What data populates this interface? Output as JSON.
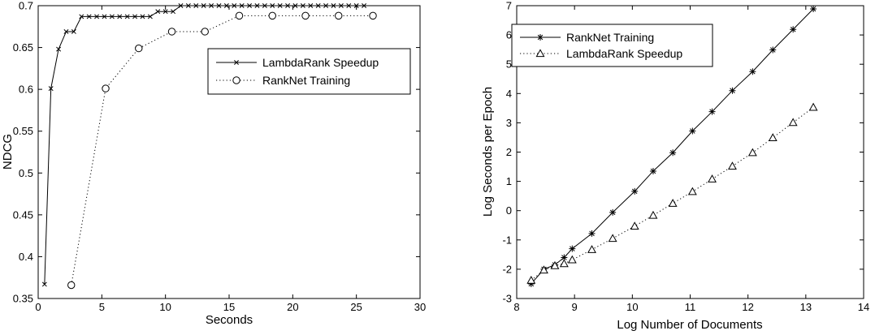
{
  "chart_data": [
    {
      "type": "line",
      "xlabel": "Seconds",
      "ylabel": "NDCG",
      "xlim": [
        0,
        30
      ],
      "ylim": [
        0.35,
        0.7
      ],
      "xticks": [
        0,
        5,
        10,
        15,
        20,
        25,
        30
      ],
      "yticks": [
        0.35,
        0.4,
        0.45,
        0.5,
        0.55,
        0.6,
        0.65,
        0.7
      ],
      "ytick_labels": [
        "0.35",
        "0.4",
        "0.45",
        "0.5",
        "0.55",
        "0.6",
        "0.65",
        "0.7"
      ],
      "grid": false,
      "legend_placement": "right",
      "series": [
        {
          "name": "LambdaRank Speedup",
          "line": "solid",
          "marker": "x",
          "x": [
            0.5,
            1.0,
            1.6,
            2.2,
            2.8,
            3.4,
            4.0,
            4.6,
            5.2,
            5.8,
            6.4,
            7.0,
            7.6,
            8.2,
            8.8,
            9.4,
            10.0,
            10.6,
            11.2,
            11.8,
            12.4,
            13.0,
            13.6,
            14.2,
            14.8,
            15.4,
            16.0,
            16.6,
            17.2,
            17.8,
            18.4,
            19.0,
            19.6,
            20.2,
            20.8,
            21.4,
            22.0,
            22.6,
            23.2,
            23.8,
            24.4,
            25.0,
            25.6
          ],
          "y": [
            0.367,
            0.601,
            0.648,
            0.669,
            0.669,
            0.687,
            0.687,
            0.687,
            0.687,
            0.687,
            0.687,
            0.687,
            0.687,
            0.687,
            0.687,
            0.693,
            0.693,
            0.693,
            0.7,
            0.7,
            0.7,
            0.7,
            0.7,
            0.7,
            0.7,
            0.7,
            0.7,
            0.7,
            0.7,
            0.7,
            0.7,
            0.7,
            0.7,
            0.7,
            0.7,
            0.7,
            0.7,
            0.7,
            0.7,
            0.7,
            0.7,
            0.7,
            0.7
          ]
        },
        {
          "name": "RankNet Training",
          "line": "dotted",
          "marker": "o",
          "x": [
            2.6,
            5.3,
            7.9,
            10.5,
            13.1,
            15.8,
            18.4,
            21.0,
            23.6,
            26.3
          ],
          "y": [
            0.366,
            0.601,
            0.649,
            0.669,
            0.669,
            0.688,
            0.688,
            0.688,
            0.688,
            0.688
          ]
        }
      ]
    },
    {
      "type": "line",
      "xlabel": "Log Number of Documents",
      "ylabel": "Log Seconds per Epoch",
      "xlim": [
        8,
        14
      ],
      "ylim": [
        -3,
        7
      ],
      "xticks": [
        8,
        9,
        10,
        11,
        12,
        13,
        14
      ],
      "yticks": [
        -3,
        -2,
        -1,
        0,
        1,
        2,
        3,
        4,
        5,
        6,
        7
      ],
      "grid": false,
      "legend_placement": "top-left",
      "series": [
        {
          "name": "RankNet Training",
          "line": "solid",
          "marker": "asterisk",
          "x": [
            8.25,
            8.47,
            8.66,
            8.82,
            8.96,
            9.3,
            9.66,
            10.04,
            10.36,
            10.7,
            11.04,
            11.38,
            11.73,
            12.08,
            12.43,
            12.78,
            13.13
          ],
          "y": [
            -2.5,
            -2.0,
            -1.85,
            -1.6,
            -1.3,
            -0.78,
            -0.06,
            0.66,
            1.35,
            1.98,
            2.72,
            3.38,
            4.1,
            4.75,
            5.49,
            6.19,
            6.89
          ]
        },
        {
          "name": "LambdaRank Speedup",
          "line": "dotted",
          "marker": "triangle",
          "x": [
            8.25,
            8.47,
            8.66,
            8.82,
            8.96,
            9.3,
            9.66,
            10.04,
            10.36,
            10.7,
            11.04,
            11.38,
            11.73,
            12.08,
            12.43,
            12.78,
            13.13
          ],
          "y": [
            -2.38,
            -2.03,
            -1.88,
            -1.81,
            -1.68,
            -1.33,
            -0.95,
            -0.53,
            -0.16,
            0.25,
            0.65,
            1.08,
            1.52,
            1.98,
            2.49,
            3.01,
            3.53
          ]
        }
      ]
    }
  ]
}
